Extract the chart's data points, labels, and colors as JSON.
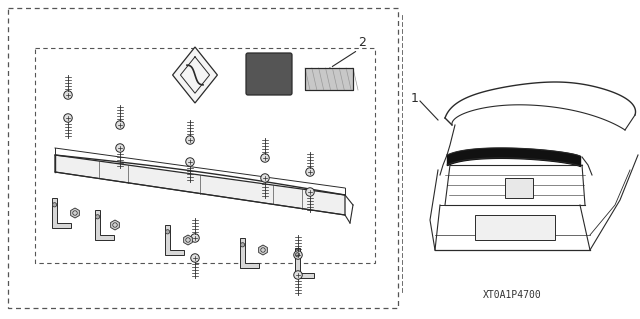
{
  "bg_color": "#ffffff",
  "line_color": "#2a2a2a",
  "dash_color": "#555555",
  "part_number_text": "XT0A1P4700",
  "label_1_text": "1",
  "label_2_text": "2",
  "figsize": [
    6.4,
    3.19
  ],
  "dpi": 100
}
